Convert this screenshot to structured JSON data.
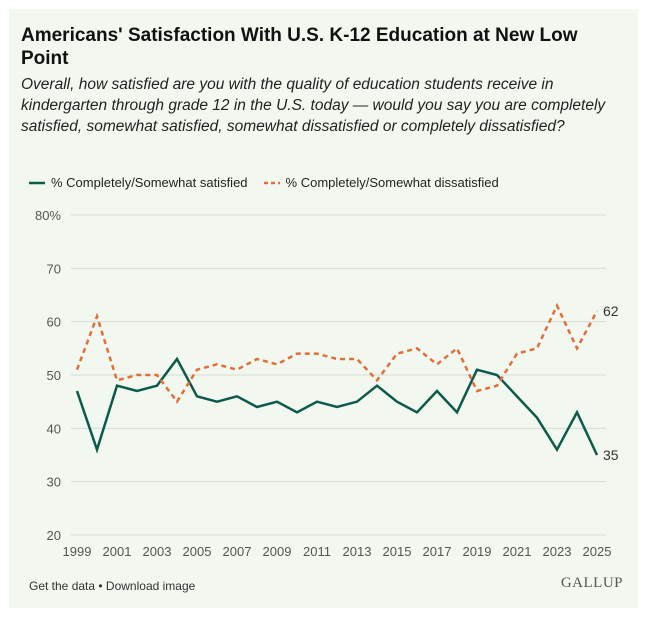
{
  "title": "Americans' Satisfaction With U.S. K-12 Education at New Low Point",
  "subtitle": "Overall, how satisfied are you with the quality of education students receive in kindergarten through grade 12 in the U.S. today — would you say you are completely satisfied, somewhat satisfied, somewhat dissatisfied or completely dissatisfied?",
  "footer": {
    "get_data": "Get the data",
    "sep": " • ",
    "download": "Download image"
  },
  "logo": "GALLUP",
  "colors": {
    "satisfied": "#0d5a4a",
    "dissatisfied": "#e07038",
    "grid": "#d6dcd4"
  },
  "chart_data": {
    "type": "line",
    "title": "Americans' Satisfaction With U.S. K-12 Education at New Low Point",
    "xlabel": "",
    "ylabel": "",
    "ylim": [
      20,
      80
    ],
    "yticks": [
      "20",
      "30",
      "40",
      "50",
      "60",
      "70",
      "80%"
    ],
    "xticks": [
      "1999",
      "2001",
      "2003",
      "2005",
      "2007",
      "2009",
      "2011",
      "2013",
      "2015",
      "2017",
      "2019",
      "2021",
      "2023",
      "2025"
    ],
    "x": [
      1999,
      2000,
      2001,
      2002,
      2003,
      2004,
      2005,
      2006,
      2007,
      2008,
      2009,
      2010,
      2011,
      2012,
      2013,
      2014,
      2015,
      2016,
      2017,
      2018,
      2019,
      2020,
      2021,
      2022,
      2023,
      2024,
      2025
    ],
    "legend_position": "top-left",
    "grid": true,
    "series": [
      {
        "name": "% Completely/Somewhat satisfied",
        "style": "solid",
        "end_label": "35",
        "values": [
          47,
          36,
          48,
          47,
          48,
          53,
          46,
          45,
          46,
          44,
          45,
          43,
          45,
          44,
          45,
          48,
          45,
          43,
          47,
          43,
          51,
          50,
          46,
          42,
          36,
          43,
          35
        ]
      },
      {
        "name": "% Completely/Somewhat dissatisfied",
        "style": "dashed",
        "end_label": "62",
        "values": [
          51,
          61,
          49,
          50,
          50,
          45,
          51,
          52,
          51,
          53,
          52,
          54,
          54,
          53,
          53,
          49,
          54,
          55,
          52,
          55,
          47,
          48,
          54,
          55,
          63,
          55,
          62
        ]
      }
    ]
  }
}
